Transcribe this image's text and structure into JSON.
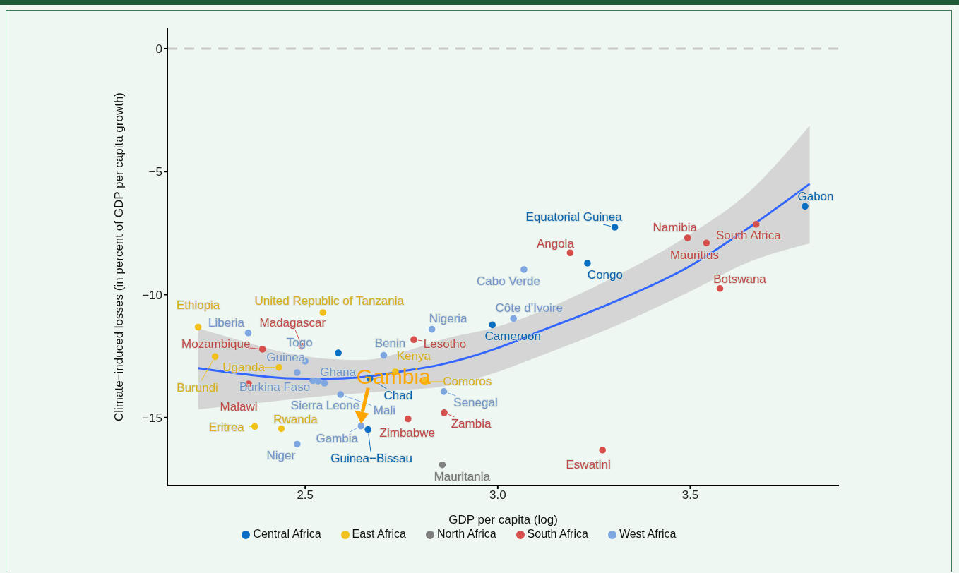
{
  "chart_data": {
    "type": "scatter",
    "xlabel": "GDP per capita (log)",
    "ylabel": "Climate−induced losses (in percent of GDP per capita growth)",
    "xlim": [
      2.142,
      3.886
    ],
    "ylim": [
      -17.76,
      0.83
    ],
    "xticks": [
      2.5,
      {
        "value": 3,
        "label": "3.0"
      },
      3.5
    ],
    "yticks": [
      {
        "value": -15,
        "label": "−15"
      },
      {
        "value": -10,
        "label": "−10"
      },
      {
        "value": -5,
        "label": "−5"
      },
      0
    ],
    "legend": "bottom",
    "marker": "circle",
    "ref_lines": [
      {
        "axis": "y",
        "value": 0,
        "color": "#c8c8c8",
        "line_style": "dashed"
      }
    ],
    "annotations": [
      {
        "text": "Gambia",
        "x": 2.645,
        "y": -15.34
      }
    ],
    "series": [
      {
        "name": "Central Africa",
        "color": "#0a6fc2",
        "x": [
          3.304,
          3.233,
          2.986,
          3.798,
          2.668,
          2.663,
          2.586
        ],
        "values": [
          -7.26,
          -8.72,
          -11.23,
          -6.41,
          -13.42,
          -15.48,
          -12.37
        ],
        "value_labels": [
          "Equatorial Guinea",
          "Congo",
          "Cameroon",
          "Gabon",
          "Chad",
          "Guinea−Bissau",
          null
        ]
      },
      {
        "name": "East Africa",
        "color": "#f0c01c",
        "x": [
          2.222,
          2.546,
          2.266,
          2.432,
          2.369,
          2.438,
          2.734,
          2.811
        ],
        "values": [
          -11.32,
          -10.73,
          -12.52,
          -12.96,
          -15.36,
          -15.45,
          -13.14,
          -13.54
        ],
        "value_labels": [
          "Ethiopia",
          "United Republic of Tanzania",
          "Burundi",
          "Uganda",
          "Eritrea",
          "Rwanda",
          "Kenya",
          "Comoros"
        ]
      },
      {
        "name": "North Africa",
        "color": "#7f7f7f",
        "x": [
          2.856
        ],
        "values": [
          -16.92
        ],
        "value_labels": [
          "Mauritania"
        ]
      },
      {
        "name": "South Africa",
        "color": "#d64f4c",
        "x": [
          2.389,
          2.491,
          2.353,
          2.782,
          2.767,
          2.861,
          3.188,
          3.493,
          3.542,
          3.671,
          3.577,
          3.272
        ],
        "values": [
          -12.22,
          -12.1,
          -13.63,
          -11.83,
          -15.05,
          -14.8,
          -8.3,
          -7.69,
          -7.9,
          -7.14,
          -9.75,
          -16.32
        ],
        "value_labels": [
          "Mozambique",
          "Madagascar",
          "Malawi",
          "Lesotho",
          "Zimbabwe",
          "Zambia",
          "Angola",
          "Namibia",
          "Mauritius",
          "South Africa",
          "Botswana",
          "Eswatini"
        ]
      },
      {
        "name": "West Africa",
        "color": "#7ea6e0",
        "x": [
          2.352,
          2.479,
          2.5,
          2.534,
          2.52,
          2.55,
          2.592,
          2.645,
          2.479,
          2.704,
          2.829,
          2.86,
          3.041,
          3.068
        ],
        "values": [
          -11.56,
          -13.17,
          -12.71,
          -13.52,
          -13.5,
          -13.6,
          -14.06,
          -15.34,
          -16.08,
          -12.47,
          -11.41,
          -13.94,
          -10.97,
          -8.98
        ],
        "value_labels": [
          "Liberia",
          "Guinea",
          "Togo",
          "Ghana",
          "Burkina Faso",
          "Sierra Leone",
          "Mali",
          "Gambia",
          "Niger",
          "Benin",
          "Nigeria",
          "Senegal",
          "Côte d’Ivoire",
          "Cabo Verde"
        ]
      },
      {
        "type": "line",
        "marker": "none",
        "color": "#3366ff",
        "x": [
          2.222,
          2.35,
          2.45,
          2.55,
          2.65,
          2.75,
          2.85,
          3.0,
          3.1,
          3.3,
          3.5,
          3.65,
          3.81
        ],
        "values": [
          -12.99,
          -13.25,
          -13.4,
          -13.42,
          -13.35,
          -13.12,
          -12.85,
          -12.17,
          -11.55,
          -10.31,
          -8.83,
          -7.3,
          -5.5
        ],
        "lower": [
          -14.67,
          -14.45,
          -14.28,
          -14.12,
          -14.0,
          -13.88,
          -13.75,
          -13.14,
          -12.55,
          -11.31,
          -9.87,
          -8.69,
          -7.92
        ],
        "upper": [
          -11.37,
          -11.95,
          -12.37,
          -12.6,
          -12.66,
          -12.35,
          -11.85,
          -11.3,
          -10.75,
          -9.3,
          -7.54,
          -5.86,
          -3.13
        ]
      }
    ]
  }
}
